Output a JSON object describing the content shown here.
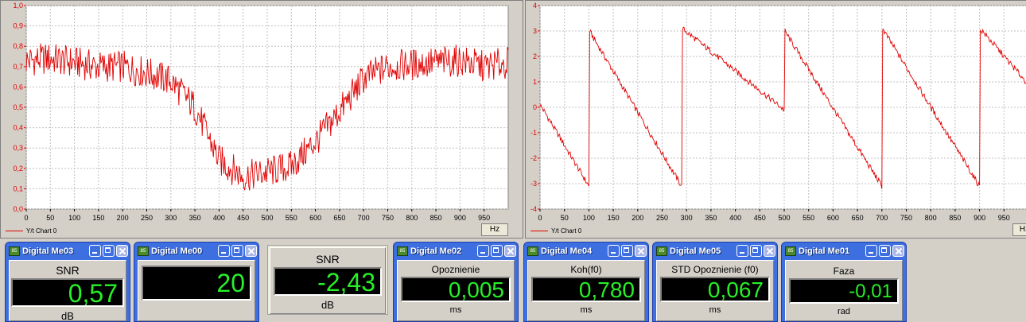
{
  "chart_data": [
    {
      "type": "line",
      "title": "",
      "xlabel": "",
      "ylabel": "",
      "xlim": [
        0,
        1000
      ],
      "ylim": [
        0,
        1.0
      ],
      "grid": true,
      "x_ticks": [
        "0",
        "50",
        "100",
        "150",
        "200",
        "250",
        "300",
        "350",
        "400",
        "450",
        "500",
        "550",
        "600",
        "650",
        "700",
        "750",
        "800",
        "850",
        "900",
        "950"
      ],
      "y_ticks": [
        "0,0",
        "0,1",
        "0,2",
        "0,3",
        "0,4",
        "0,5",
        "0,6",
        "0,7",
        "0,8",
        "0,9",
        "1,0"
      ],
      "unit_label": "Hz",
      "legend": [
        "Y/t Chart 0"
      ],
      "series": [
        {
          "name": "Y/t Chart 0",
          "color": "#e00000",
          "x": [
            0,
            50,
            100,
            150,
            200,
            250,
            300,
            350,
            400,
            450,
            500,
            550,
            600,
            650,
            700,
            750,
            800,
            850,
            900,
            950,
            1000
          ],
          "y": [
            0.73,
            0.74,
            0.72,
            0.7,
            0.7,
            0.67,
            0.63,
            0.5,
            0.24,
            0.16,
            0.18,
            0.21,
            0.33,
            0.48,
            0.64,
            0.7,
            0.71,
            0.72,
            0.73,
            0.7,
            0.72
          ]
        }
      ]
    },
    {
      "type": "line",
      "title": "",
      "xlabel": "",
      "ylabel": "",
      "xlim": [
        0,
        1000
      ],
      "ylim": [
        -4,
        4
      ],
      "grid": true,
      "x_ticks": [
        "0",
        "50",
        "100",
        "150",
        "200",
        "250",
        "300",
        "350",
        "400",
        "450",
        "500",
        "550",
        "600",
        "650",
        "700",
        "750",
        "800",
        "850",
        "900",
        "950"
      ],
      "y_ticks": [
        "-4",
        "-3",
        "-2",
        "-1",
        "0",
        "1",
        "2",
        "3",
        "4"
      ],
      "unit_label": "Hz",
      "legend": [
        "Y/t Chart 0"
      ],
      "series": [
        {
          "name": "Y/t Chart 0",
          "color": "#e00000",
          "x": [
            0,
            10,
            100,
            101,
            290,
            291,
            500,
            501,
            700,
            701,
            900,
            901,
            1000
          ],
          "y": [
            0.1,
            -0.2,
            -3.1,
            3.0,
            -3.1,
            3.1,
            -0.1,
            3.0,
            -3.1,
            3.1,
            -3.1,
            3.1,
            0.9
          ]
        }
      ]
    }
  ],
  "meters": [
    {
      "title": "Digital Me03",
      "windowed": true,
      "label": "SNR",
      "value": "0,57",
      "unit": "dB"
    },
    {
      "title": "Digital Me00",
      "windowed": true,
      "label": "",
      "value": "20",
      "unit": ""
    },
    {
      "title": "",
      "windowed": false,
      "label": "SNR",
      "value": "-2,43",
      "unit": "dB"
    },
    {
      "title": "Digital Me02",
      "windowed": true,
      "label": "Opoznienie",
      "value": "0,005",
      "unit": "ms"
    },
    {
      "title": "Digital Me04",
      "windowed": true,
      "label": "Koh(f0)",
      "value": "0,780",
      "unit": "ms"
    },
    {
      "title": "Digital Me05",
      "windowed": true,
      "label": "STD Opoznienie (f0)",
      "value": "0,067",
      "unit": "ms"
    },
    {
      "title": "Digital Me01",
      "windowed": true,
      "label": "Faza",
      "value": "-0,01",
      "unit": "rad"
    }
  ],
  "icons": {
    "title_icon": "window-app-icon",
    "minimize": "minimize-icon",
    "maximize": "maximize-icon",
    "close": "close-icon"
  },
  "colors": {
    "trace": "#e00000",
    "lcd_text": "#28f028",
    "titlebar": "#3d6fe0"
  }
}
